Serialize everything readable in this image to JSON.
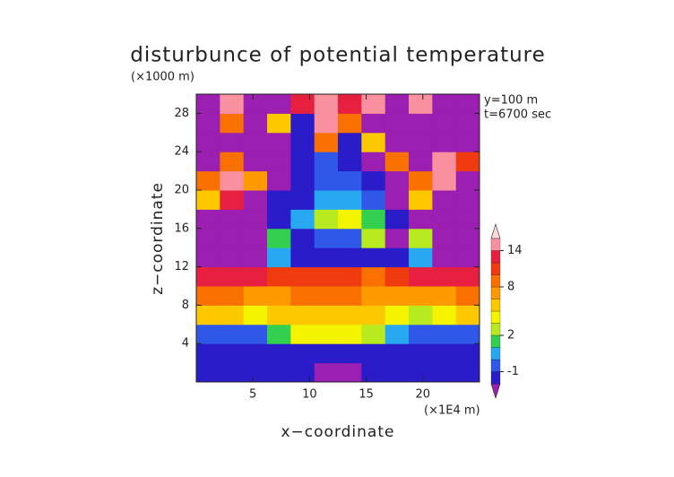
{
  "chart_data": {
    "type": "heatmap",
    "title": "disturbunce of potential temperature",
    "y_unit": "(×1000 m)",
    "x_unit": "(×1E4 m)",
    "annotations": [
      "y=100 m",
      "t=6700 sec"
    ],
    "x_label": "x−coordinate",
    "y_label": "z−coordinate",
    "xlim": [
      0,
      25
    ],
    "ylim": [
      0,
      30
    ],
    "xticks": [
      5,
      10,
      15,
      20
    ],
    "yticks": [
      4,
      8,
      12,
      16,
      20,
      24,
      28
    ],
    "x": [
      1.04,
      3.13,
      5.21,
      7.29,
      9.38,
      11.46,
      13.54,
      15.63,
      17.71,
      19.79,
      21.88,
      23.96
    ],
    "y": [
      1,
      3,
      5,
      7,
      9,
      11,
      13,
      15,
      17,
      19,
      21,
      23,
      25,
      27,
      29
    ],
    "z": [
      [
        -1.5,
        -1.5,
        -1.5,
        -1.5,
        -1.5,
        -3,
        -3,
        -1.5,
        -1.5,
        -1.5,
        -1.5,
        -1.5
      ],
      [
        -1.5,
        -1.5,
        -1.5,
        -1.5,
        -1.5,
        -1.5,
        -1.5,
        -1.5,
        -1.5,
        -1.5,
        -1.5,
        -1.5
      ],
      [
        -1,
        -1,
        -0.5,
        1,
        3,
        3,
        3,
        2,
        0,
        -1,
        -1,
        -1
      ],
      [
        5,
        4,
        3,
        4,
        5,
        5,
        5,
        4,
        3,
        2,
        3,
        5
      ],
      [
        8,
        8,
        7,
        7,
        8,
        8,
        8,
        7,
        6,
        6,
        7,
        8
      ],
      [
        12,
        13,
        12,
        10,
        10,
        11,
        10,
        9,
        10,
        12,
        13,
        12
      ],
      [
        -3,
        -3,
        -3,
        0,
        -2,
        -2,
        -2,
        -2,
        -2,
        0,
        -3,
        -3
      ],
      [
        -3,
        -3,
        -3,
        1,
        -2,
        -1,
        -1,
        2,
        -3,
        2,
        -3,
        -3
      ],
      [
        -3,
        -3,
        -3,
        -2,
        0,
        2,
        3,
        1,
        -2,
        -3,
        -3,
        -3
      ],
      [
        4,
        12,
        -3,
        -2,
        -2,
        0,
        0,
        -1,
        -3,
        4,
        -3,
        -3
      ],
      [
        8,
        14,
        6,
        -3,
        -2,
        -1,
        -1,
        -2,
        -3,
        8,
        14,
        -3
      ],
      [
        -3,
        8,
        -3,
        -3,
        -2,
        -1,
        -2,
        -3,
        8,
        -3,
        14,
        10
      ],
      [
        -3,
        -3,
        -3,
        -3,
        -2,
        8,
        -2,
        4,
        -3,
        -3,
        -3,
        -3
      ],
      [
        -3,
        8,
        -3,
        4,
        -2,
        14,
        8,
        -3,
        -3,
        -3,
        -3,
        -3
      ],
      [
        -3,
        14,
        -3,
        -3,
        12,
        14,
        12,
        14,
        -3,
        14,
        -3,
        -3
      ]
    ],
    "levels": [
      -2,
      -1,
      0,
      1,
      2,
      3,
      4,
      6,
      8,
      10,
      12,
      14,
      16
    ],
    "colors": [
      "#9b1fb0",
      "#2a1cc8",
      "#2f58e8",
      "#27a8f0",
      "#33d050",
      "#b8ea20",
      "#f4f400",
      "#fcc800",
      "#fc9a00",
      "#f87000",
      "#f03a10",
      "#e82040",
      "#f890a0",
      "#fcd8d8"
    ],
    "colorbar_ticks": [
      -1,
      2,
      8,
      14
    ]
  }
}
